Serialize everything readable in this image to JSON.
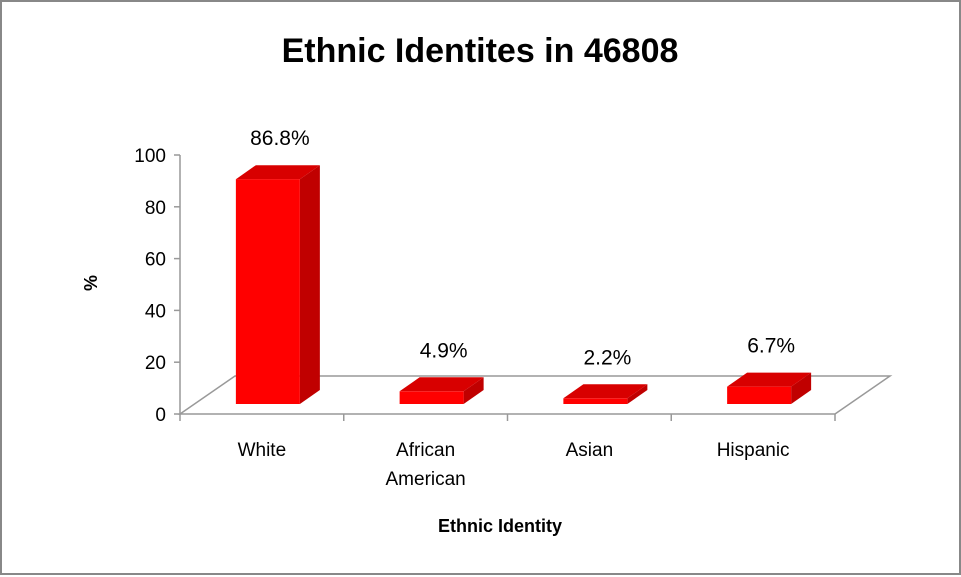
{
  "chart_data": {
    "type": "bar",
    "title": "Ethnic Identites in 46808",
    "xlabel": "Ethnic Identity",
    "ylabel": "%",
    "ylim": [
      0,
      100
    ],
    "yticks": [
      0,
      20,
      40,
      60,
      80,
      100
    ],
    "categories": [
      "White",
      "African American",
      "Asian",
      "Hispanic"
    ],
    "category_lines": [
      [
        "White"
      ],
      [
        "African",
        "American"
      ],
      [
        "Asian"
      ],
      [
        "Hispanic"
      ]
    ],
    "values": [
      86.8,
      4.9,
      2.2,
      6.7
    ],
    "data_labels": [
      "86.8%",
      "4.9%",
      "2.2%",
      "6.7%"
    ],
    "bar_color": "#ff0000",
    "bar_side_color": "#c00000",
    "bar_top_color": "#d80000",
    "grid": false,
    "legend": "none"
  }
}
